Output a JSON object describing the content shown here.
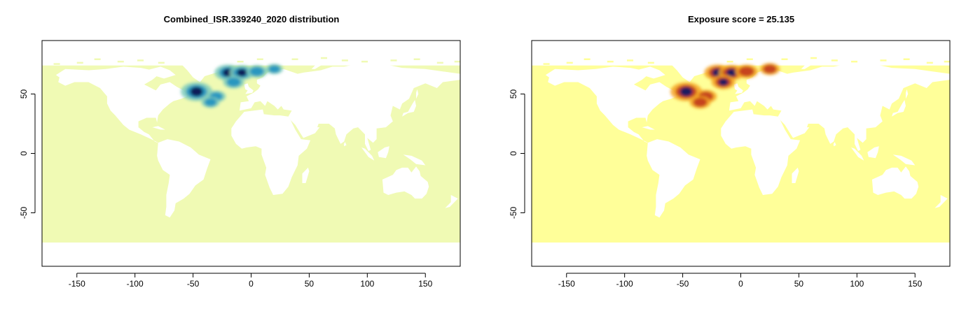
{
  "chart_data": [
    {
      "type": "heatmap",
      "title": "Combined_ISR.339240_2020 distribution",
      "xlabel": "",
      "ylabel": "",
      "xlim": [
        -180,
        180
      ],
      "ylim": [
        -95,
        95
      ],
      "x_ticks": [
        -150,
        -100,
        -50,
        0,
        50,
        100,
        150
      ],
      "x_tick_labels": [
        "-150",
        "-100",
        "-50",
        "0",
        "50",
        "100",
        "150"
      ],
      "y_ticks": [
        -50,
        0,
        50
      ],
      "y_tick_labels": [
        "-50",
        "0",
        "50"
      ],
      "colors": {
        "ocean": "#f0fab4",
        "land": "#ffffff",
        "low": "#7fcdbb",
        "mid": "#1d91c0",
        "high": "#081d58"
      },
      "hotspots": [
        {
          "lon": -47,
          "lat": 52,
          "intensity": 1.0
        },
        {
          "lon": -20,
          "lat": 68,
          "intensity": 0.75
        },
        {
          "lon": -8,
          "lat": 68,
          "intensity": 0.65
        },
        {
          "lon": 5,
          "lat": 69,
          "intensity": 0.45
        },
        {
          "lon": -30,
          "lat": 48,
          "intensity": 0.35
        },
        {
          "lon": -15,
          "lat": 60,
          "intensity": 0.45
        },
        {
          "lon": -35,
          "lat": 43,
          "intensity": 0.3
        },
        {
          "lon": 20,
          "lat": 71,
          "intensity": 0.25
        }
      ]
    },
    {
      "type": "heatmap",
      "title": "Exposure score = 25.135",
      "xlabel": "",
      "ylabel": "",
      "xlim": [
        -180,
        180
      ],
      "ylim": [
        -95,
        95
      ],
      "x_ticks": [
        -150,
        -100,
        -50,
        0,
        50,
        100,
        150
      ],
      "x_tick_labels": [
        "-150",
        "-100",
        "-50",
        "0",
        "50",
        "100",
        "150"
      ],
      "y_ticks": [
        -50,
        0,
        50
      ],
      "y_tick_labels": [
        "-50",
        "0",
        "50"
      ],
      "colors": {
        "ocean": "#ffff99",
        "land": "#ffffff",
        "low": "#f6a623",
        "mid": "#c1391b",
        "high": "#1a1a5e"
      },
      "hotspots": [
        {
          "lon": -47,
          "lat": 52,
          "intensity": 1.0
        },
        {
          "lon": -20,
          "lat": 68,
          "intensity": 0.75
        },
        {
          "lon": -8,
          "lat": 68,
          "intensity": 0.7
        },
        {
          "lon": 5,
          "lat": 69,
          "intensity": 0.55
        },
        {
          "lon": 25,
          "lat": 71,
          "intensity": 0.4
        },
        {
          "lon": -30,
          "lat": 48,
          "intensity": 0.5
        },
        {
          "lon": -15,
          "lat": 60,
          "intensity": 0.6
        },
        {
          "lon": -35,
          "lat": 43,
          "intensity": 0.45
        }
      ]
    }
  ]
}
